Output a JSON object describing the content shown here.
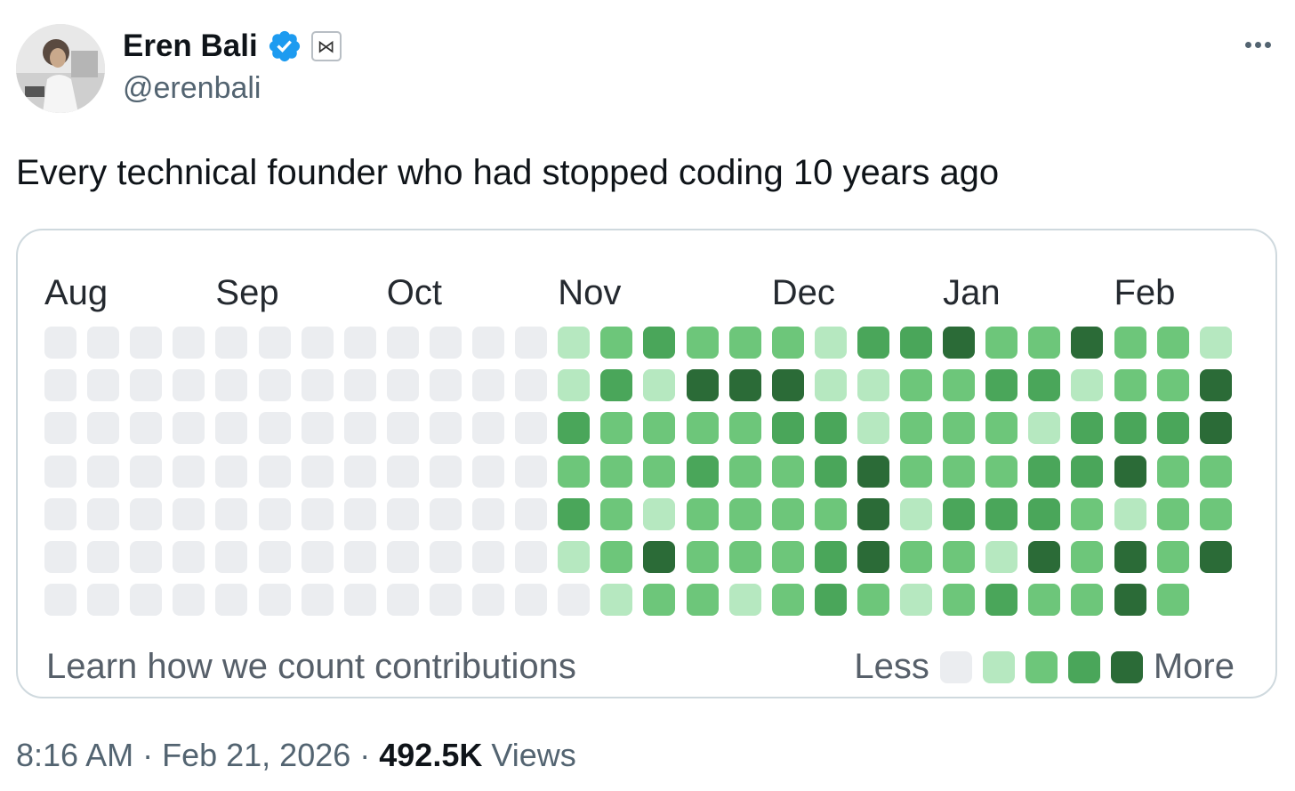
{
  "author": {
    "display_name": "Eren Bali",
    "handle": "@erenbali",
    "verified_icon": "verified-badge-icon",
    "affiliation_icon": "bowtie-icon",
    "affiliation_glyph": "⋈"
  },
  "tweet": {
    "text": "Every technical founder who had stopped coding 10 years ago"
  },
  "graph": {
    "months": [
      "Aug",
      "Sep",
      "Oct",
      "Nov",
      "Dec",
      "Jan",
      "Feb"
    ],
    "learn_link": "Learn how we count contributions",
    "legend_less": "Less",
    "legend_more": "More",
    "level_colors": [
      "#ebedf0",
      "#b6e8c0",
      "#6dc67a",
      "#4aa65a",
      "#2b6b37"
    ],
    "weeks": [
      [
        0,
        0,
        0,
        0,
        0,
        0,
        0
      ],
      [
        0,
        0,
        0,
        0,
        0,
        0,
        0
      ],
      [
        0,
        0,
        0,
        0,
        0,
        0,
        0
      ],
      [
        0,
        0,
        0,
        0,
        0,
        0,
        0
      ],
      [
        0,
        0,
        0,
        0,
        0,
        0,
        0
      ],
      [
        0,
        0,
        0,
        0,
        0,
        0,
        0
      ],
      [
        0,
        0,
        0,
        0,
        0,
        0,
        0
      ],
      [
        0,
        0,
        0,
        0,
        0,
        0,
        0
      ],
      [
        0,
        0,
        0,
        0,
        0,
        0,
        0
      ],
      [
        0,
        0,
        0,
        0,
        0,
        0,
        0
      ],
      [
        0,
        0,
        0,
        0,
        0,
        0,
        0
      ],
      [
        0,
        0,
        0,
        0,
        0,
        0,
        0
      ],
      [
        1,
        1,
        3,
        2,
        3,
        1,
        0
      ],
      [
        2,
        3,
        2,
        2,
        2,
        2,
        1
      ],
      [
        3,
        1,
        2,
        2,
        1,
        4,
        2
      ],
      [
        2,
        4,
        2,
        3,
        2,
        2,
        2
      ],
      [
        2,
        4,
        2,
        2,
        2,
        2,
        1
      ],
      [
        2,
        4,
        3,
        2,
        2,
        2,
        2
      ],
      [
        1,
        1,
        3,
        3,
        2,
        3,
        3
      ],
      [
        3,
        1,
        1,
        4,
        4,
        4,
        2
      ],
      [
        3,
        2,
        2,
        2,
        1,
        2,
        1
      ],
      [
        4,
        2,
        2,
        2,
        3,
        2,
        2
      ],
      [
        2,
        3,
        2,
        2,
        3,
        1,
        3
      ],
      [
        2,
        3,
        1,
        3,
        3,
        4,
        2
      ],
      [
        4,
        1,
        3,
        3,
        2,
        2,
        2
      ],
      [
        2,
        2,
        3,
        4,
        1,
        4,
        4
      ],
      [
        2,
        2,
        3,
        2,
        2,
        2,
        2
      ],
      [
        1,
        4,
        4,
        2,
        2,
        4,
        -1
      ]
    ]
  },
  "meta": {
    "time": "8:16 AM",
    "sep1": " · ",
    "date": "Feb 21, 2026",
    "sep2": " · ",
    "views_count": "492.5K",
    "views_label": " Views"
  }
}
